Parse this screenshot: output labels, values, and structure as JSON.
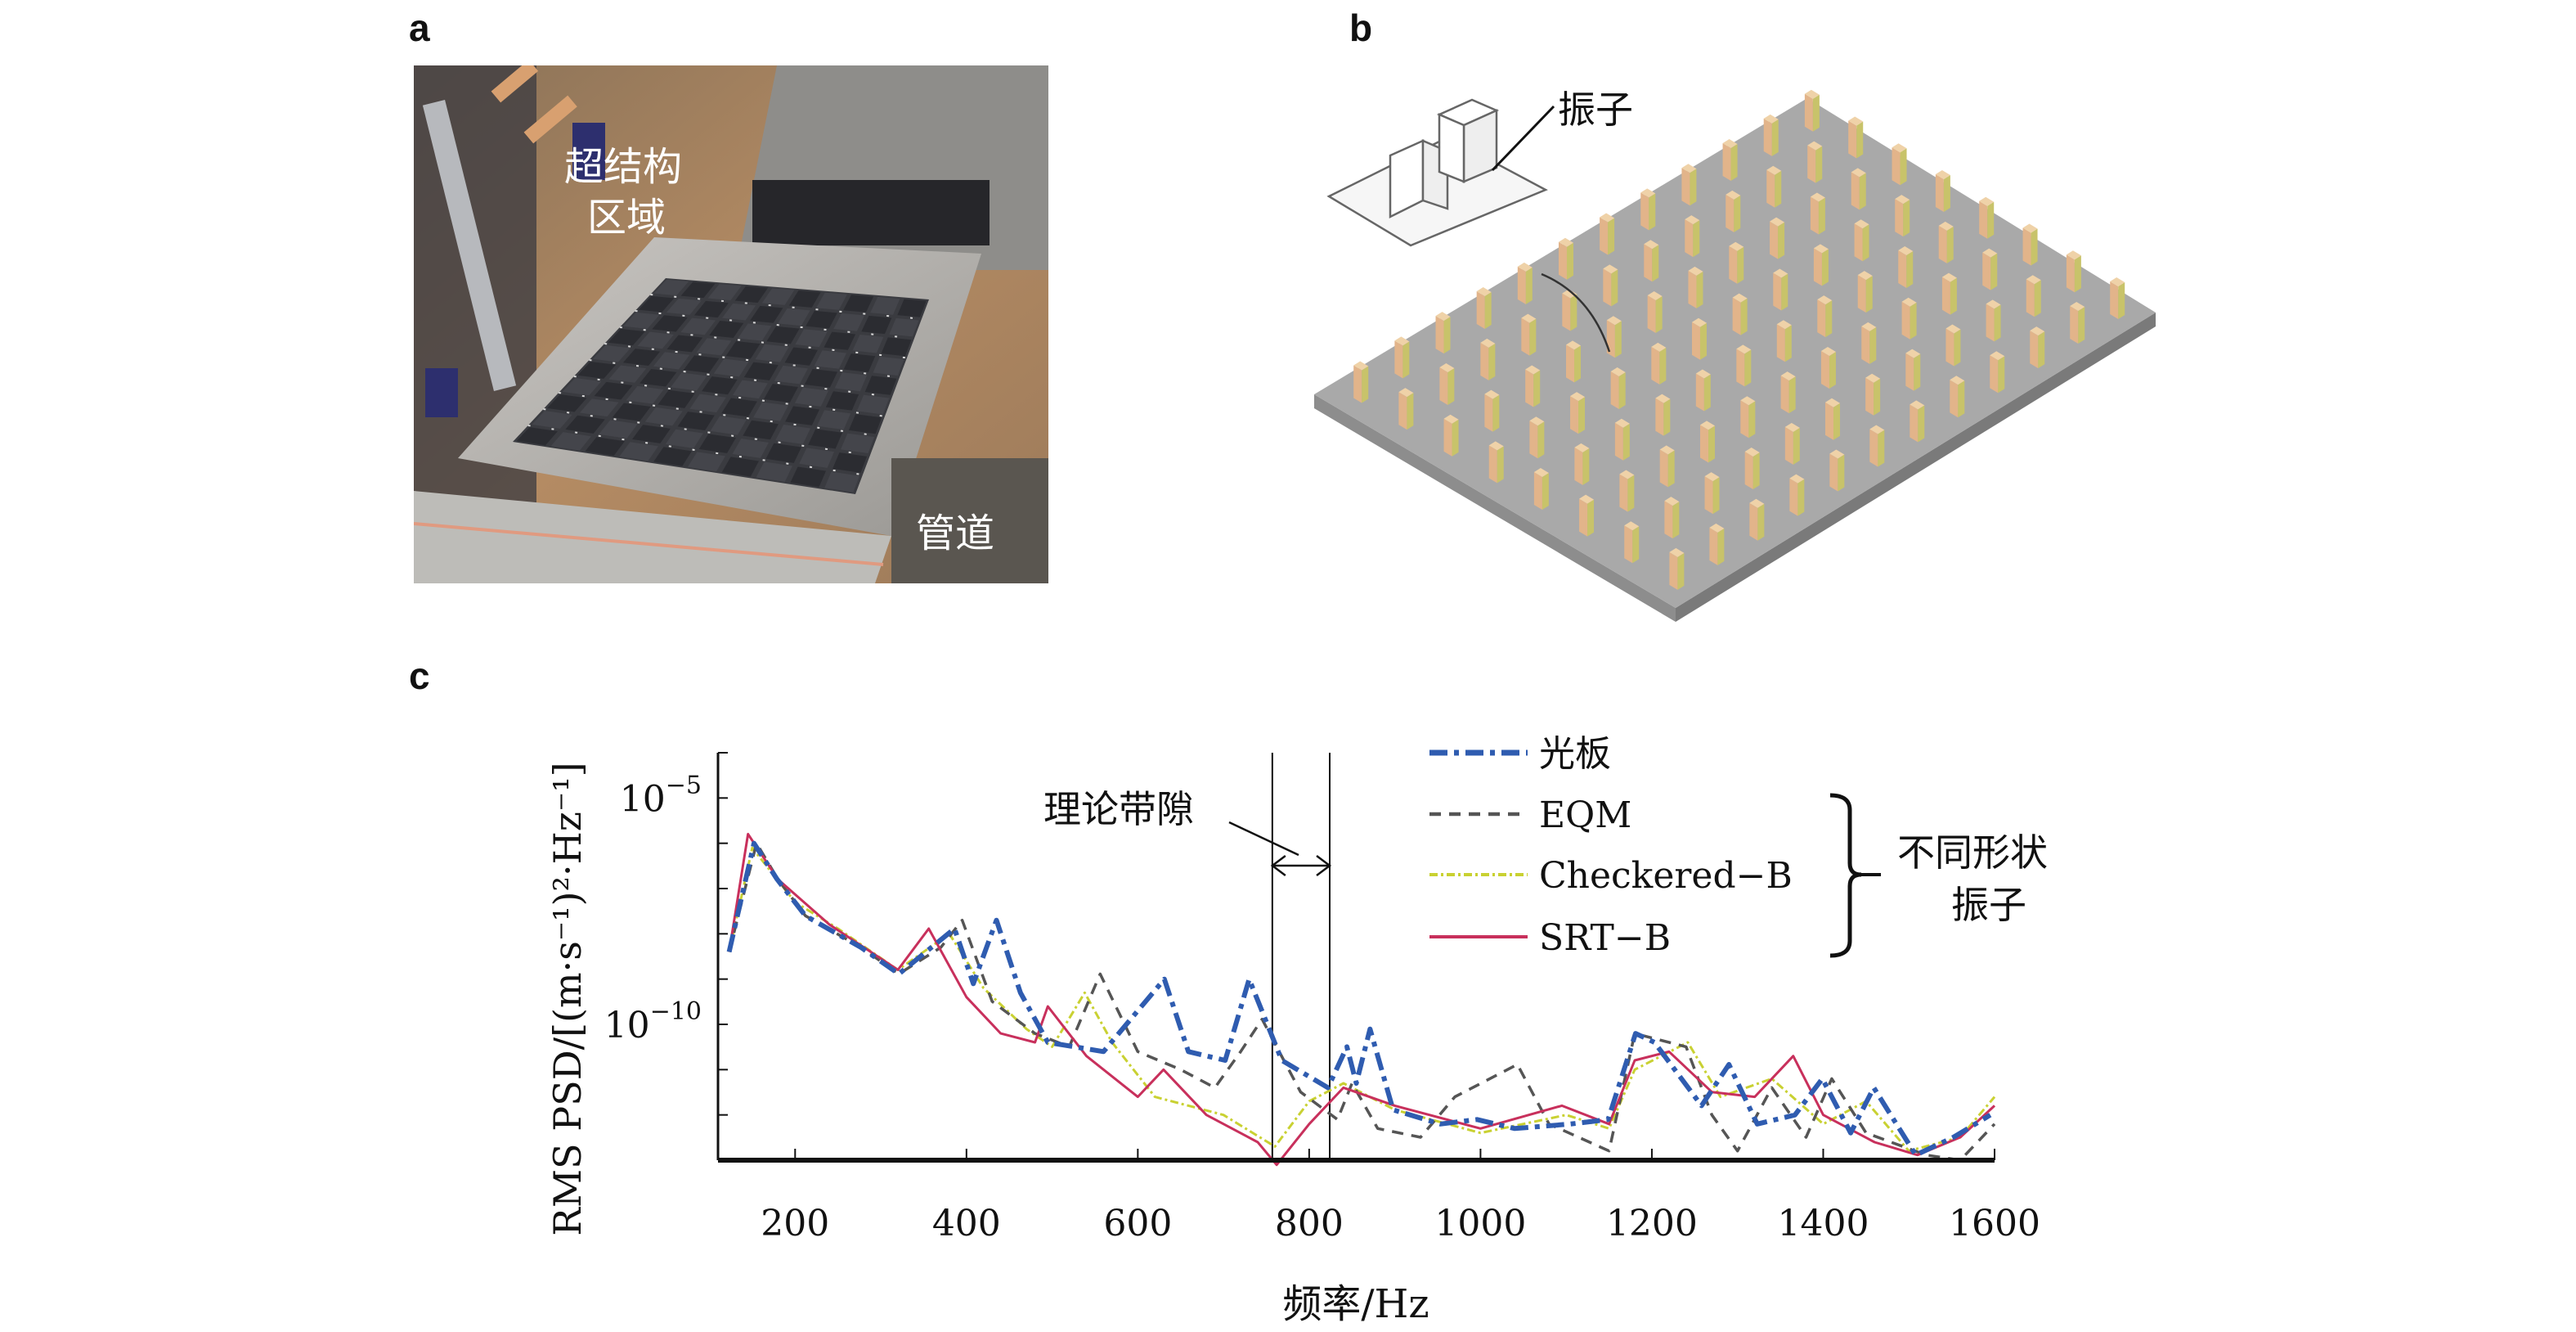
{
  "panels": {
    "a": {
      "label": "a",
      "annotations": {
        "metastructure_line1": "超结构",
        "metastructure_line2": "区域",
        "pipe": "管道"
      }
    },
    "b": {
      "label": "b",
      "annotations": {
        "resonator": "振子"
      }
    },
    "c": {
      "label": "c"
    }
  },
  "chart_data": {
    "type": "line",
    "xlabel": "频率/Hz",
    "ylabel": "RMS PSD/[(m·s⁻¹)²·Hz⁻¹]",
    "xlim": [
      110,
      1600
    ],
    "ylim": [
      1e-13,
      0.0001
    ],
    "yscale": "log",
    "grid": false,
    "legend_placement": "top-right",
    "x_ticks": [
      200,
      400,
      600,
      800,
      1000,
      1200,
      1400,
      1600
    ],
    "x_tick_labels": [
      "200",
      "400",
      "600",
      "800",
      "1000",
      "1200",
      "1400",
      "1600"
    ],
    "y_ticks": [
      1e-10,
      1e-05
    ],
    "y_tick_labels": [
      {
        "base": "10",
        "exp": "−10"
      },
      {
        "base": "10",
        "exp": "−5"
      }
    ],
    "annotations": {
      "band_gap_label": "理论带隙",
      "band_gap_range": [
        757,
        824
      ],
      "group_label_line1": "不同形状",
      "group_label_line2": "振子"
    },
    "series": [
      {
        "name": "光板",
        "color": "#2f5cb0",
        "style": "dash-dot",
        "x": [
          123,
          152,
          179,
          212,
          277,
          321,
          386,
          408,
          435,
          463,
          495,
          560,
          631,
          659,
          702,
          730,
          768,
          822,
          844,
          855,
          871,
          898,
          953,
          996,
          1040,
          1105,
          1149,
          1181,
          1203,
          1258,
          1290,
          1323,
          1367,
          1399,
          1432,
          1459,
          1508,
          1552,
          1595
        ],
        "y": [
          4e-09,
          1e-06,
          1.6e-07,
          2.5e-08,
          5e-09,
          1.3e-09,
          1.3e-08,
          7.9e-10,
          2e-08,
          5e-10,
          4e-11,
          2.5e-11,
          1e-09,
          2.5e-11,
          1.6e-11,
          1e-09,
          1.6e-11,
          4e-12,
          3.2e-11,
          5e-12,
          7.9e-11,
          1.3e-12,
          6.3e-13,
          7.9e-13,
          5e-13,
          6.3e-13,
          7.9e-13,
          6.3e-11,
          4e-11,
          1.6e-12,
          1.3e-11,
          6.3e-13,
          1e-12,
          6.3e-12,
          4e-13,
          4e-12,
          1.3e-13,
          3.2e-13,
          1e-12
        ]
      },
      {
        "name": "EQM",
        "color": "#555555",
        "style": "dashed",
        "x": [
          123,
          155,
          180,
          212,
          277,
          321,
          370,
          395,
          430,
          480,
          520,
          556,
          600,
          650,
          690,
          720,
          745,
          790,
          833,
          850,
          880,
          930,
          970,
          1043,
          1080,
          1150,
          1180,
          1240,
          1270,
          1300,
          1340,
          1380,
          1410,
          1450,
          1520,
          1560,
          1600
        ],
        "y": [
          4e-09,
          1e-06,
          1.6e-07,
          2.5e-08,
          5e-09,
          1.3e-09,
          5e-09,
          2e-08,
          3.2e-10,
          6.3e-11,
          3.2e-11,
          1.3e-09,
          2.5e-11,
          1e-11,
          4e-12,
          2.5e-11,
          1.3e-10,
          3.2e-12,
          7.9e-13,
          5e-12,
          5e-13,
          3.2e-13,
          2.5e-12,
          1.3e-11,
          6.3e-13,
          1.6e-13,
          6.3e-11,
          3.2e-11,
          1e-12,
          1.6e-13,
          4e-12,
          3.2e-13,
          6.3e-12,
          4e-13,
          1.3e-13,
          1e-13,
          6.3e-13
        ]
      },
      {
        "name": "Checkered−B",
        "color": "#c9d132",
        "style": "dash-dot-fine",
        "x": [
          123,
          150,
          200,
          250,
          320,
          380,
          420,
          470,
          500,
          538,
          570,
          620,
          700,
          760,
          800,
          840,
          900,
          1000,
          1100,
          1150,
          1180,
          1242,
          1280,
          1340,
          1400,
          1450,
          1500,
          1560,
          1600
        ],
        "y": [
          4e-09,
          7.9e-07,
          5e-08,
          1.3e-08,
          1.6e-09,
          1e-08,
          6.3e-10,
          7.9e-11,
          3.2e-11,
          5e-10,
          4e-11,
          2.5e-12,
          1e-12,
          2e-13,
          2e-12,
          5e-12,
          1.3e-12,
          4e-13,
          1e-12,
          5e-13,
          1e-11,
          4e-11,
          2.5e-12,
          6.3e-12,
          6.3e-13,
          2e-12,
          1.6e-13,
          3.2e-13,
          2.5e-12
        ]
      },
      {
        "name": "SRT−B",
        "color": "#c8305c",
        "style": "solid",
        "x": [
          123,
          145,
          180,
          240,
          320,
          356,
          400,
          440,
          480,
          495,
          540,
          600,
          630,
          680,
          740,
          762,
          800,
          840,
          900,
          1000,
          1095,
          1150,
          1180,
          1220,
          1270,
          1320,
          1365,
          1400,
          1460,
          1510,
          1560,
          1600
        ],
        "y": [
          4e-09,
          1.6e-06,
          1.6e-07,
          1.6e-08,
          1.6e-09,
          1.3e-08,
          4e-10,
          6.3e-11,
          4e-11,
          2.5e-10,
          2e-11,
          2.5e-12,
          1e-11,
          1e-12,
          2.5e-13,
          7.9e-14,
          6.3e-13,
          4e-12,
          1.6e-12,
          5e-13,
          1.6e-12,
          6.3e-13,
          1.6e-11,
          2.5e-11,
          3.2e-12,
          2.5e-12,
          2e-11,
          1e-12,
          2.5e-13,
          1.3e-13,
          3.2e-13,
          1.6e-12
        ]
      }
    ]
  }
}
